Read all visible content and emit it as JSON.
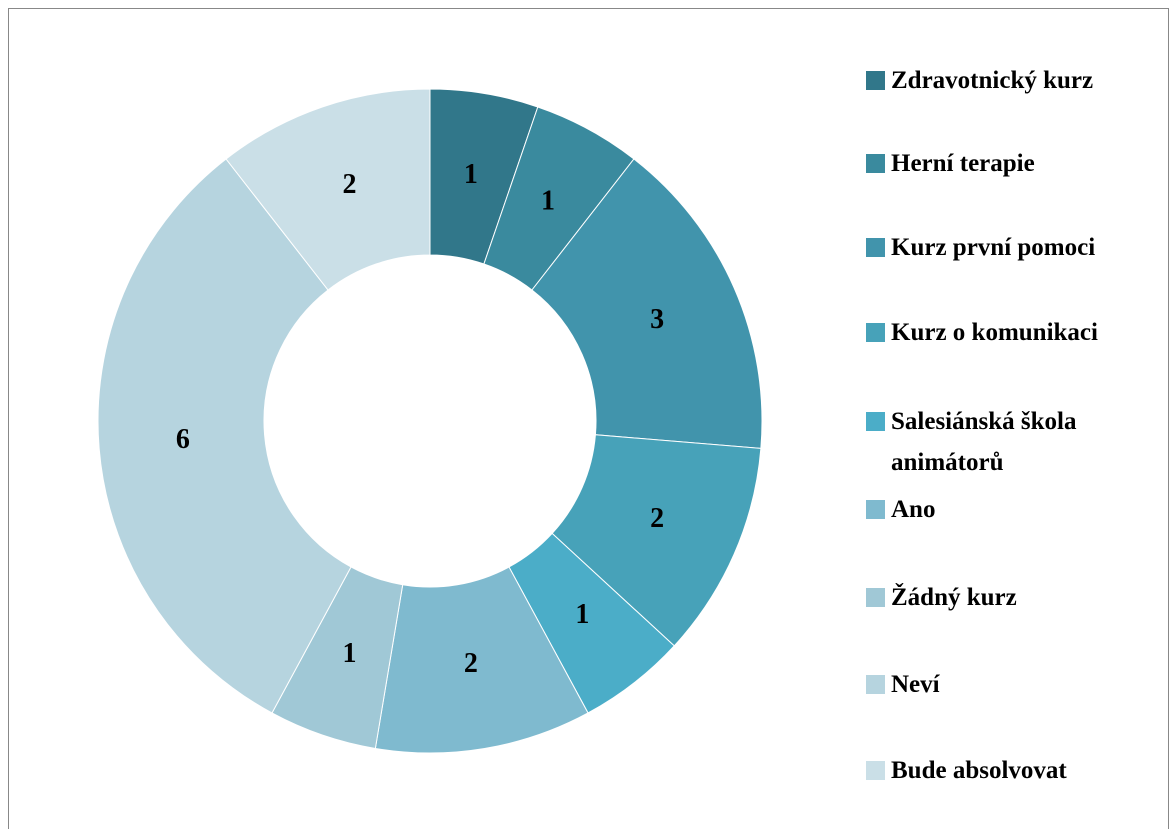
{
  "chart_data": {
    "type": "donut",
    "categories": [
      "Zdravotnický kurz",
      "Herní terapie",
      "Kurz první pomoci",
      "Kurz o komunikaci",
      "Salesiánská škola animátorů",
      "Ano",
      "Žádný kurz",
      "Neví",
      "Bude absolvovat"
    ],
    "values": [
      1,
      1,
      3,
      2,
      1,
      2,
      1,
      6,
      2
    ],
    "colors": [
      "#31778a",
      "#3a8a9e",
      "#4194ac",
      "#47a2b9",
      "#4badc8",
      "#7fbacf",
      "#a0c8d6",
      "#b6d4df",
      "#cadfe7"
    ],
    "legend": "right"
  }
}
